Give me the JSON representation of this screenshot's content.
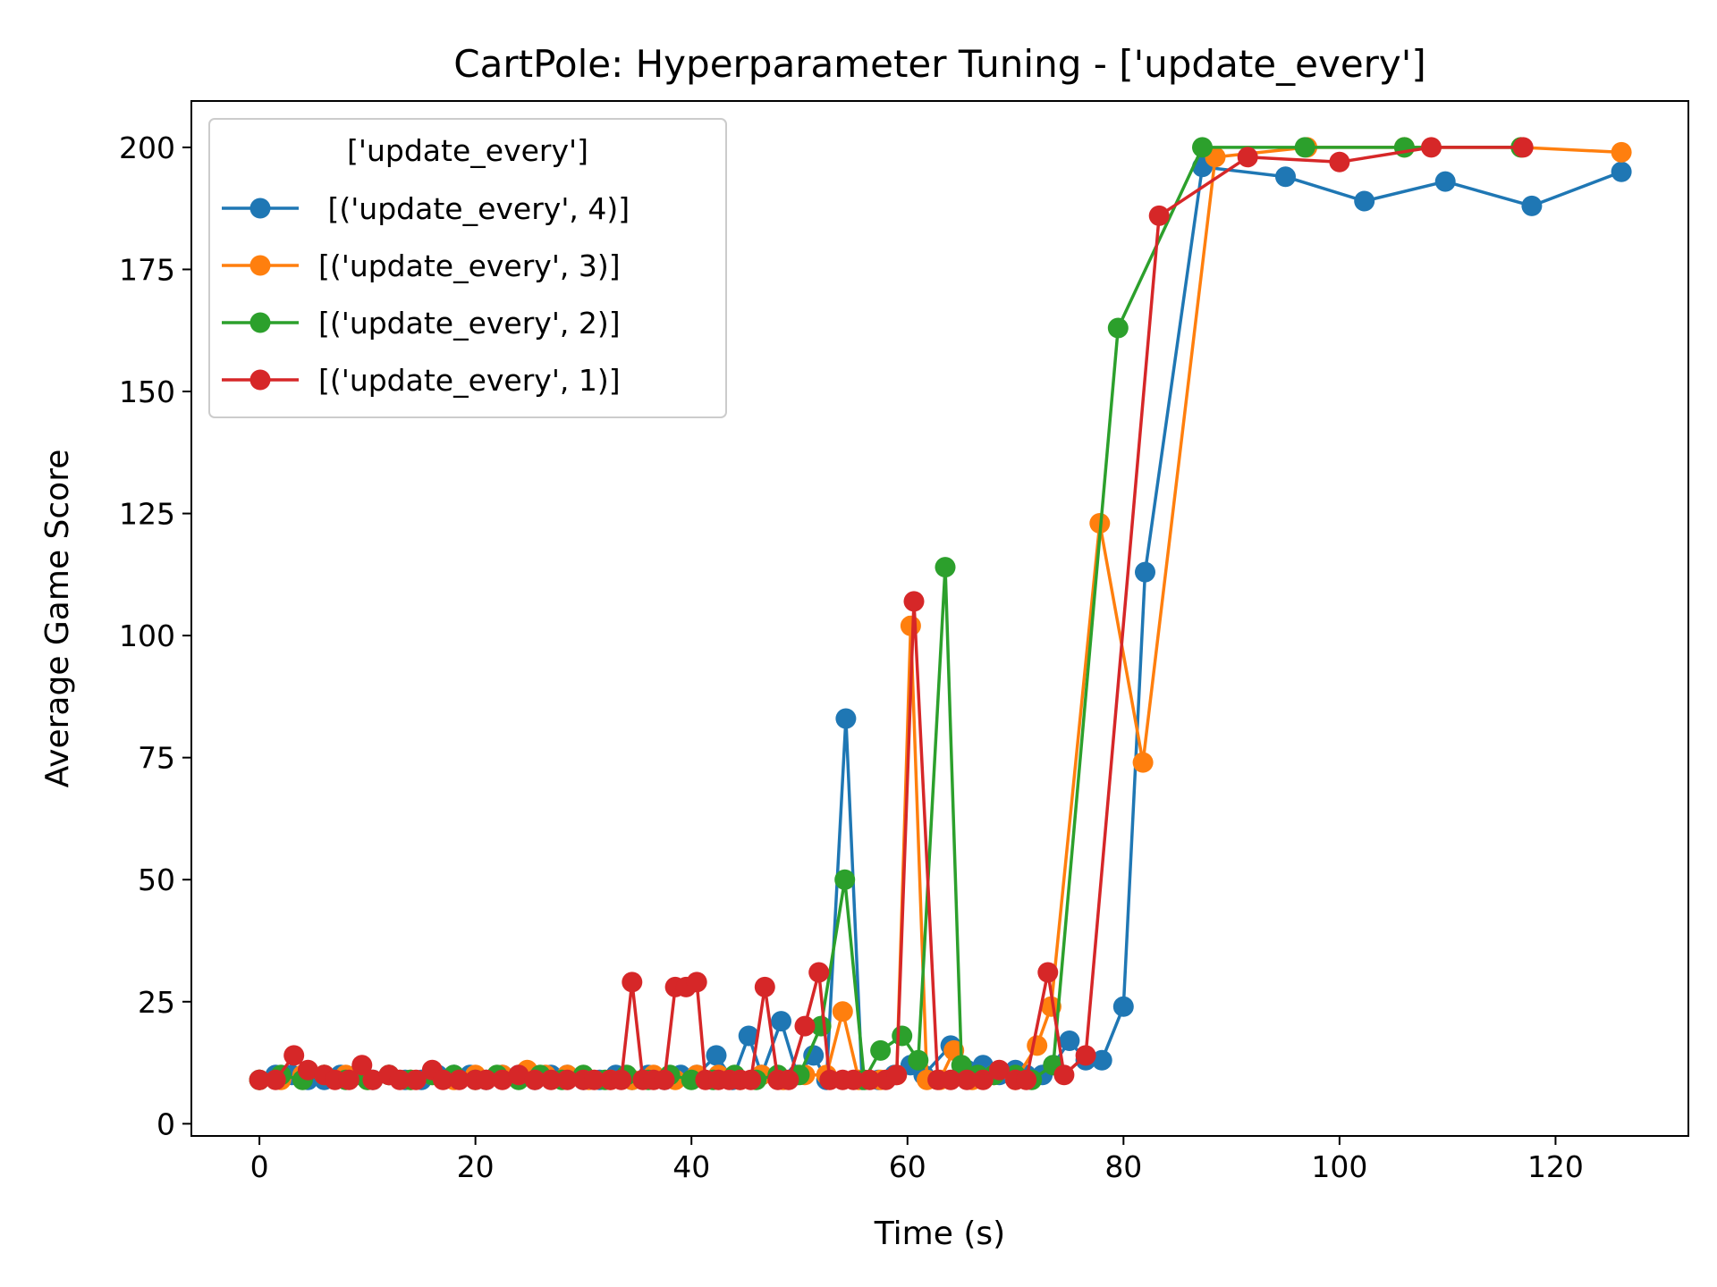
{
  "chart_data": {
    "type": "line",
    "title": "CartPole: Hyperparameter Tuning - ['update_every']",
    "xlabel": "Time (s)",
    "ylabel": "Average Game Score",
    "xlim": [
      -6.3,
      132.3
    ],
    "ylim": [
      -2.5,
      209.5
    ],
    "xticks": [
      0,
      20,
      40,
      60,
      80,
      100,
      120
    ],
    "yticks": [
      0,
      25,
      50,
      75,
      100,
      125,
      150,
      175,
      200
    ],
    "grid": false,
    "legend": {
      "title": "['update_every']",
      "placement": "top-left"
    },
    "series": [
      {
        "name": " [('update_every', 4)]",
        "color": "#1f77b4",
        "x": [
          0,
          1.5,
          3,
          4.5,
          6,
          7.5,
          9,
          10.5,
          12,
          13.5,
          15,
          16.5,
          18,
          19.5,
          21,
          22.5,
          24,
          25.5,
          27,
          28.5,
          30,
          31.5,
          33,
          34.5,
          36,
          37.5,
          39,
          40.5,
          42.3,
          43.8,
          45.3,
          46.5,
          48.3,
          49.8,
          51.3,
          52.5,
          54.3,
          55.8,
          57.3,
          58.8,
          60.3,
          61.5,
          64,
          65.5,
          67,
          68.5,
          70,
          71,
          72.5,
          73.5,
          75,
          76.5,
          78,
          80,
          82,
          87.3,
          95,
          102.3,
          109.8,
          117.8,
          126.1
        ],
        "y": [
          9,
          10,
          10,
          9,
          9,
          10,
          10,
          9,
          10,
          9,
          9,
          10,
          10,
          10,
          9,
          10,
          10,
          9,
          10,
          10,
          9,
          9,
          10,
          9,
          10,
          9,
          10,
          10,
          14,
          9,
          18,
          10,
          21,
          10,
          14,
          9,
          83,
          9,
          9,
          10,
          12,
          10,
          16,
          11,
          12,
          10,
          11,
          10,
          10,
          12,
          17,
          13,
          13,
          24,
          113,
          196,
          194,
          189,
          193,
          188,
          195
        ]
      },
      {
        "name": "[('update_every', 3)]",
        "color": "#ff7f0e",
        "x": [
          0,
          2,
          4,
          6,
          8,
          10,
          12,
          14,
          16,
          18,
          20,
          22.5,
          24.8,
          26.5,
          28.5,
          30.5,
          32.5,
          34.5,
          36.5,
          38.5,
          40.5,
          42.5,
          44.5,
          46.5,
          48.5,
          50.5,
          52.5,
          54,
          55.5,
          57.5,
          59,
          60.3,
          61.8,
          63,
          64.3,
          66,
          68,
          70,
          72,
          73.3,
          77.8,
          81.8,
          88.5,
          97,
          106,
          116.8,
          126.1
        ],
        "y": [
          9,
          9,
          10,
          10,
          10,
          9,
          10,
          9,
          10,
          9,
          10,
          10,
          11,
          10,
          10,
          9,
          9,
          9,
          10,
          9,
          10,
          10,
          9,
          10,
          9,
          10,
          10,
          23,
          9,
          9,
          10,
          102,
          9,
          9,
          15,
          9,
          10,
          9,
          16,
          24,
          123,
          74,
          198,
          200,
          200,
          200,
          199
        ]
      },
      {
        "name": "[('update_every', 2)]",
        "color": "#2ca02c",
        "x": [
          0,
          2,
          4,
          6,
          8,
          10,
          12,
          14,
          16,
          18,
          20,
          22,
          24,
          26,
          28,
          30,
          32,
          34,
          36,
          38,
          40,
          42,
          44,
          46,
          48,
          50,
          52,
          54.2,
          56,
          57.5,
          59.5,
          61,
          63.5,
          65,
          66.5,
          68,
          70,
          71.5,
          73.5,
          79.5,
          87.3,
          96.8,
          106,
          116.8
        ],
        "y": [
          9,
          10,
          9,
          10,
          9,
          9,
          10,
          9,
          10,
          10,
          9,
          10,
          9,
          10,
          9,
          10,
          9,
          10,
          9,
          10,
          9,
          9,
          10,
          9,
          10,
          10,
          20,
          50,
          9,
          15,
          18,
          13,
          114,
          12,
          10,
          10,
          10,
          9,
          12,
          163,
          200,
          200,
          200,
          200
        ]
      },
      {
        "name": "[('update_every', 1)]",
        "color": "#d62728",
        "x": [
          0,
          1.5,
          3.2,
          4.5,
          6,
          7,
          8.3,
          9.5,
          10.5,
          12,
          13,
          14.5,
          16,
          17,
          18.5,
          20,
          21,
          22.5,
          24,
          25.5,
          27,
          28.5,
          30,
          31,
          32.5,
          33.5,
          34.5,
          35.5,
          36.5,
          37.5,
          38.5,
          39.5,
          40.5,
          41.3,
          42.5,
          43.5,
          44.5,
          45.5,
          46.8,
          48,
          49,
          50.5,
          51.8,
          52.8,
          54,
          55,
          56.5,
          58,
          59,
          60.6,
          62.8,
          64,
          65.5,
          67,
          68.5,
          70,
          71,
          73,
          74.5,
          76.5,
          83.3,
          91.5,
          100,
          108.5,
          117
        ],
        "y": [
          9,
          9,
          14,
          11,
          10,
          9,
          9,
          12,
          9,
          10,
          9,
          9,
          11,
          9,
          9,
          9,
          9,
          9,
          10,
          9,
          9,
          9,
          9,
          9,
          9,
          9,
          29,
          9,
          9,
          9,
          28,
          28,
          29,
          9,
          9,
          9,
          9,
          9,
          28,
          9,
          9,
          20,
          31,
          9,
          9,
          9,
          9,
          9,
          10,
          107,
          9,
          9,
          9,
          9,
          11,
          9,
          9,
          31,
          10,
          14,
          186,
          198,
          197,
          200,
          200
        ]
      }
    ]
  }
}
